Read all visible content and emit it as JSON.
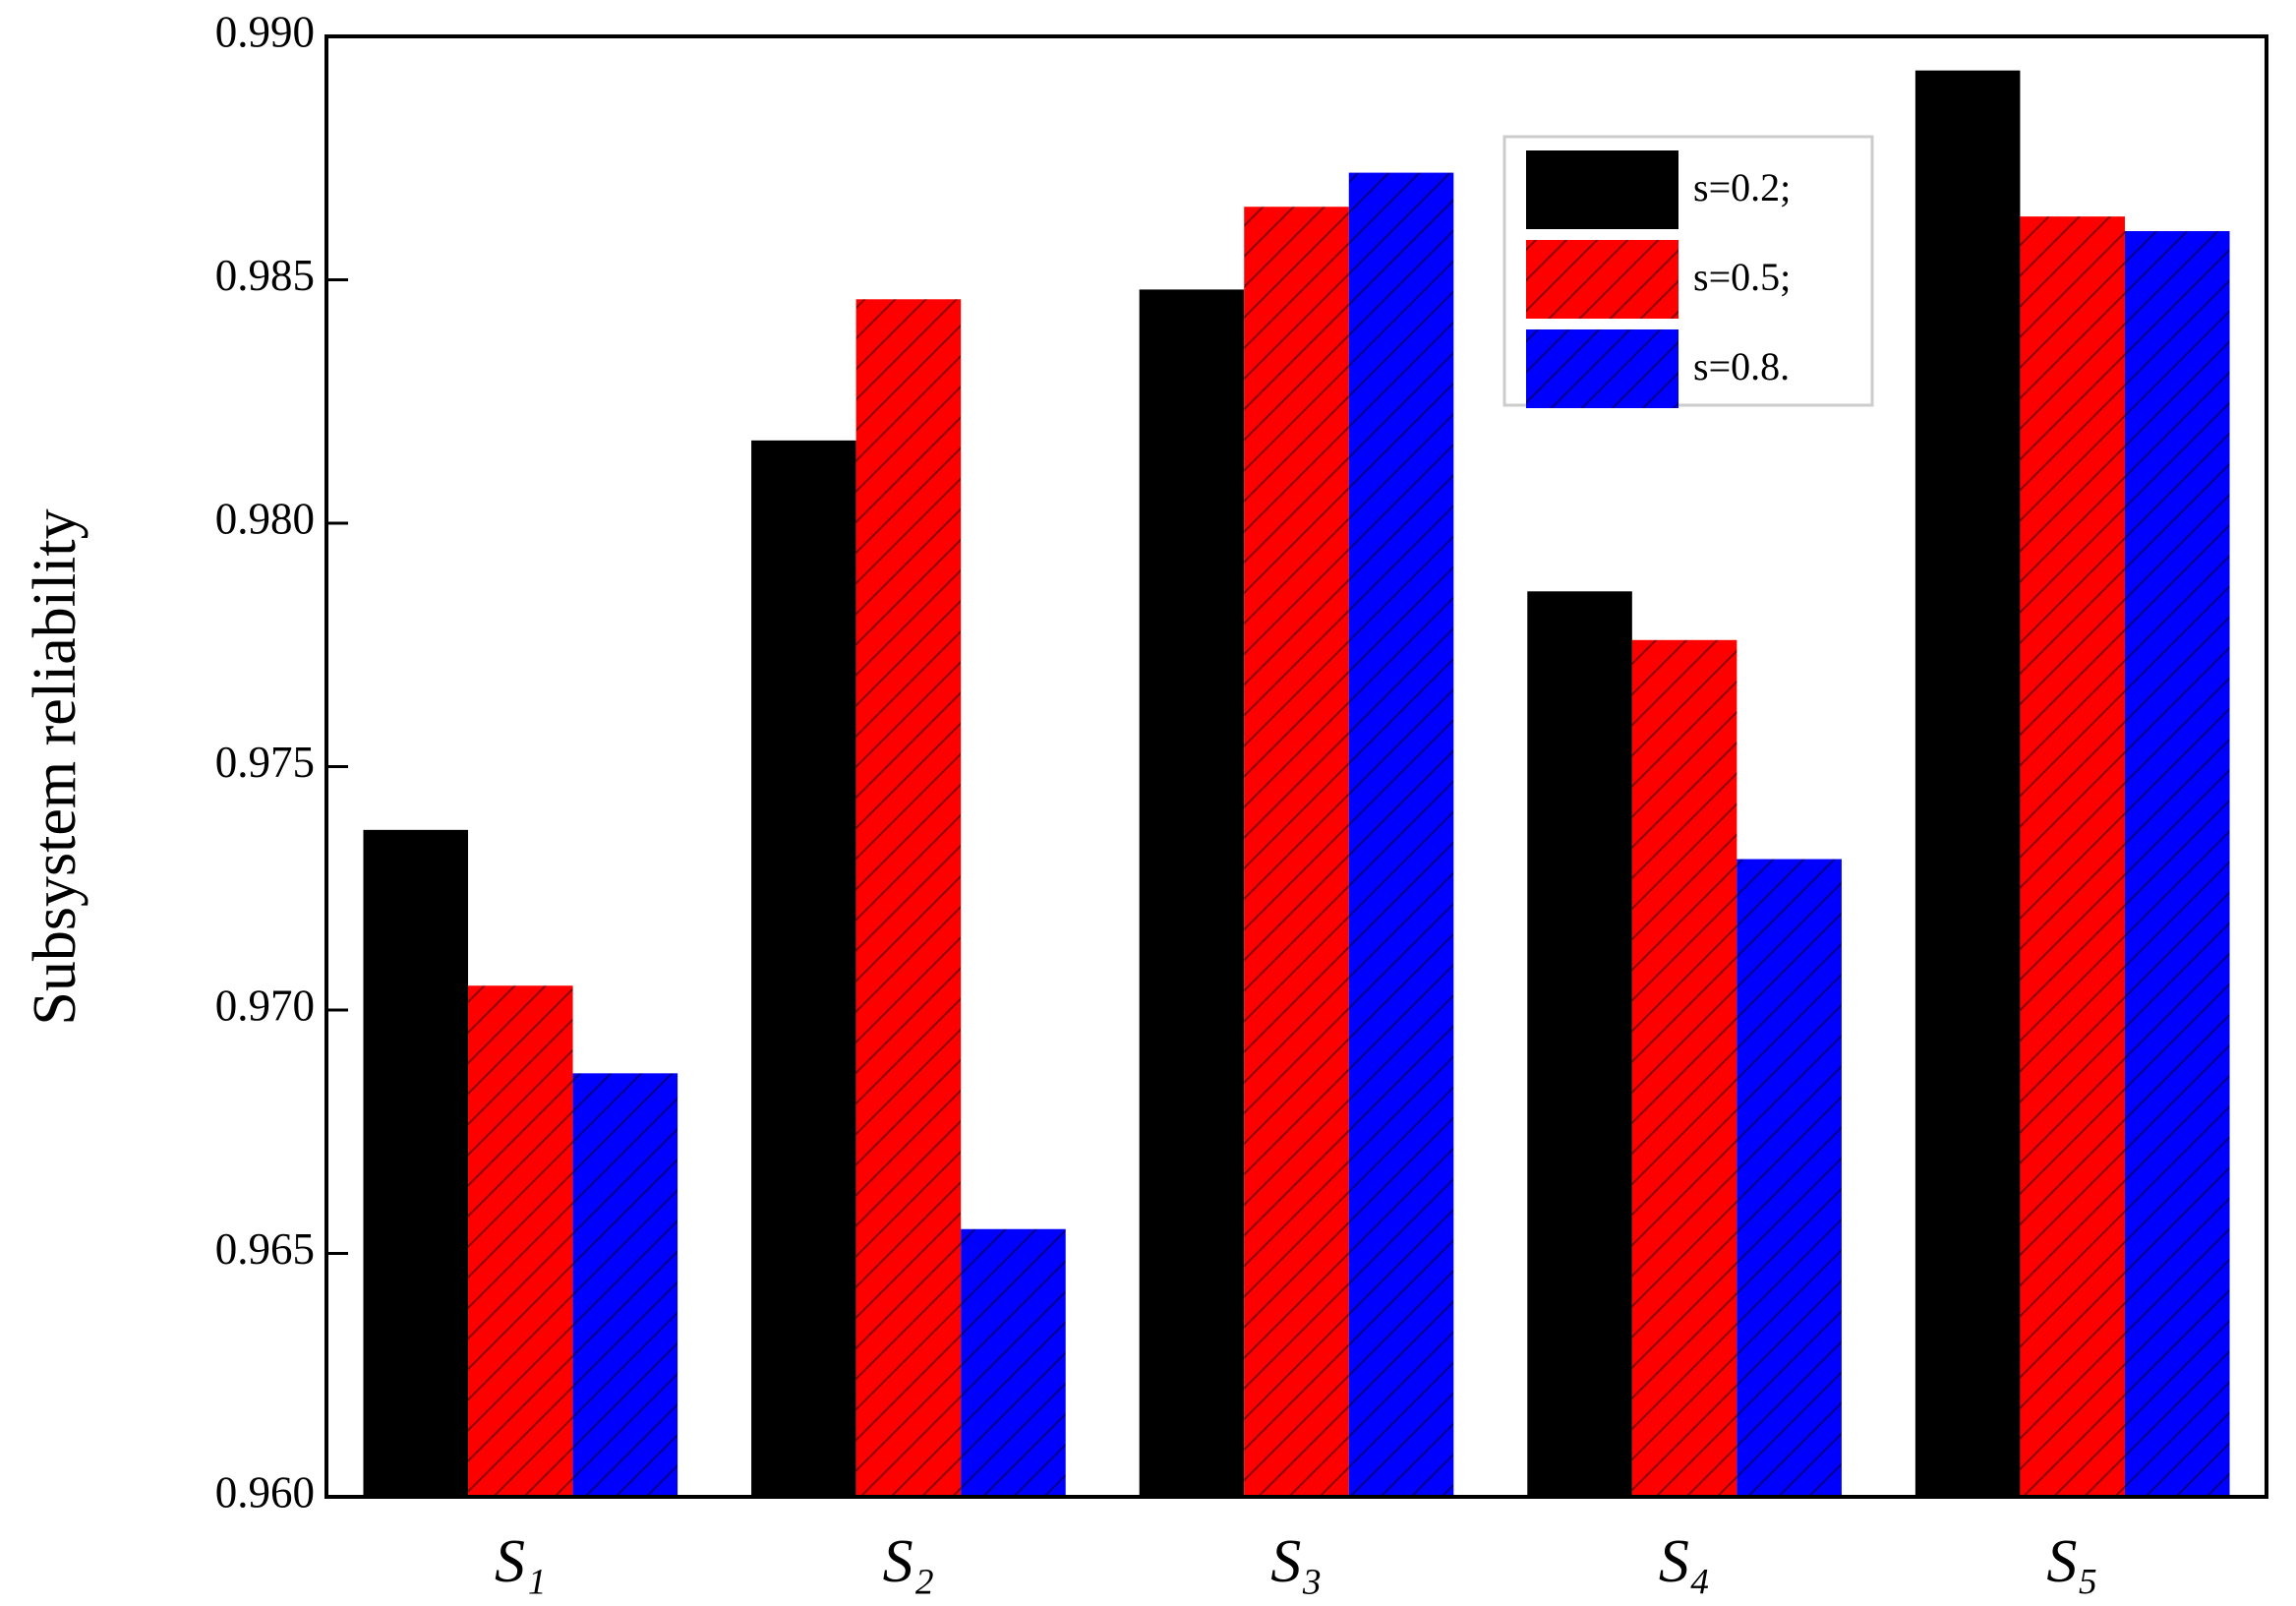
{
  "chart_data": {
    "type": "bar",
    "y_label": "Subsystem reliability",
    "categories": [
      "S₁",
      "S₂",
      "S₃",
      "S₄",
      "S₅"
    ],
    "series": [
      {
        "name": "s=0.2;",
        "color": "#000000",
        "values": [
          0.9737,
          0.9817,
          0.9848,
          0.9786,
          0.9893
        ]
      },
      {
        "name": "s=0.5;",
        "color": "#ff0000",
        "values": [
          0.9705,
          0.9846,
          0.9865,
          0.9776,
          0.9863
        ]
      },
      {
        "name": "s=0.8.",
        "color": "#0000ff",
        "values": [
          0.9687,
          0.9655,
          0.9872,
          0.9731,
          0.986
        ]
      }
    ],
    "ylim": [
      0.96,
      0.99
    ],
    "yticks": [
      {
        "value": 0.96,
        "label": "0.960"
      },
      0.965,
      {
        "value": 0.97,
        "label": "0.970"
      },
      0.975,
      {
        "value": 0.98,
        "label": "0.980"
      },
      0.985,
      {
        "value": 0.99,
        "label": "0.990"
      }
    ],
    "legend": "upper right"
  }
}
